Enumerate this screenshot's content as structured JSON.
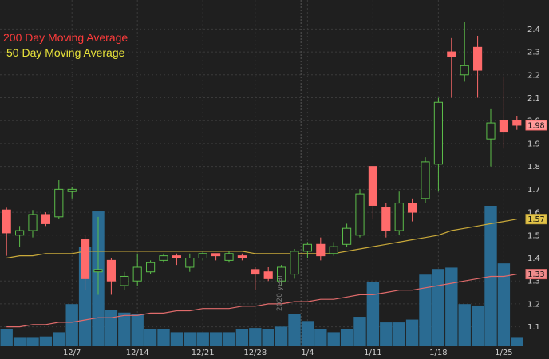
{
  "legend": {
    "ma200_label": "200 Day Moving Average",
    "ma50_label": "50 Day Moving Average"
  },
  "year_marker": "2020 year",
  "colors": {
    "background": "#1f1f1f",
    "grid": "#3a3a3a",
    "up": "#5cbf4a",
    "down": "#ff6b6b",
    "volume": "#2a6b92",
    "ma50": "#c9a93a",
    "ma200": "#e06b6b",
    "axis_text": "#cfcfcf"
  },
  "chart_data": {
    "type": "candlestick",
    "ylim": [
      1.05,
      2.45
    ],
    "yticks": [
      1.1,
      1.2,
      1.3,
      1.4,
      1.5,
      1.6,
      1.7,
      1.8,
      1.9,
      2.0,
      2.1,
      2.2,
      2.3,
      2.4
    ],
    "xtick_labels": [
      {
        "label": "12/7",
        "index": 5
      },
      {
        "label": "12/14",
        "index": 10
      },
      {
        "label": "12/21",
        "index": 15
      },
      {
        "label": "12/28",
        "index": 19
      },
      {
        "label": "1/4",
        "index": 23
      },
      {
        "label": "1/11",
        "index": 28
      },
      {
        "label": "1/18",
        "index": 33
      },
      {
        "label": "1/25",
        "index": 38
      }
    ],
    "year_boundary_index": 22,
    "candles": [
      {
        "o": 1.61,
        "h": 1.62,
        "l": 1.41,
        "c": 1.51
      },
      {
        "o": 1.5,
        "h": 1.54,
        "l": 1.45,
        "c": 1.52
      },
      {
        "o": 1.52,
        "h": 1.61,
        "l": 1.49,
        "c": 1.59
      },
      {
        "o": 1.59,
        "h": 1.6,
        "l": 1.54,
        "c": 1.55
      },
      {
        "o": 1.58,
        "h": 1.74,
        "l": 1.57,
        "c": 1.7
      },
      {
        "o": 1.69,
        "h": 1.71,
        "l": 1.66,
        "c": 1.7
      },
      {
        "o": 1.48,
        "h": 1.5,
        "l": 1.26,
        "c": 1.31
      },
      {
        "o": 1.34,
        "h": 1.58,
        "l": 1.24,
        "c": 1.35
      },
      {
        "o": 1.39,
        "h": 1.4,
        "l": 1.24,
        "c": 1.3
      },
      {
        "o": 1.28,
        "h": 1.34,
        "l": 1.26,
        "c": 1.32
      },
      {
        "o": 1.3,
        "h": 1.42,
        "l": 1.28,
        "c": 1.36
      },
      {
        "o": 1.34,
        "h": 1.39,
        "l": 1.33,
        "c": 1.38
      },
      {
        "o": 1.39,
        "h": 1.42,
        "l": 1.38,
        "c": 1.41
      },
      {
        "o": 1.41,
        "h": 1.42,
        "l": 1.37,
        "c": 1.4
      },
      {
        "o": 1.36,
        "h": 1.42,
        "l": 1.34,
        "c": 1.4
      },
      {
        "o": 1.4,
        "h": 1.43,
        "l": 1.39,
        "c": 1.42
      },
      {
        "o": 1.42,
        "h": 1.42,
        "l": 1.39,
        "c": 1.41
      },
      {
        "o": 1.39,
        "h": 1.43,
        "l": 1.38,
        "c": 1.42
      },
      {
        "o": 1.41,
        "h": 1.42,
        "l": 1.39,
        "c": 1.4
      },
      {
        "o": 1.35,
        "h": 1.36,
        "l": 1.26,
        "c": 1.33
      },
      {
        "o": 1.34,
        "h": 1.36,
        "l": 1.3,
        "c": 1.31
      },
      {
        "o": 1.3,
        "h": 1.37,
        "l": 1.28,
        "c": 1.36
      },
      {
        "o": 1.33,
        "h": 1.44,
        "l": 1.31,
        "c": 1.43
      },
      {
        "o": 1.43,
        "h": 1.47,
        "l": 1.4,
        "c": 1.46
      },
      {
        "o": 1.46,
        "h": 1.49,
        "l": 1.39,
        "c": 1.41
      },
      {
        "o": 1.42,
        "h": 1.47,
        "l": 1.41,
        "c": 1.45
      },
      {
        "o": 1.46,
        "h": 1.55,
        "l": 1.45,
        "c": 1.53
      },
      {
        "o": 1.5,
        "h": 1.7,
        "l": 1.49,
        "c": 1.68
      },
      {
        "o": 1.8,
        "h": 1.8,
        "l": 1.57,
        "c": 1.63
      },
      {
        "o": 1.62,
        "h": 1.64,
        "l": 1.49,
        "c": 1.52
      },
      {
        "o": 1.52,
        "h": 1.69,
        "l": 1.5,
        "c": 1.64
      },
      {
        "o": 1.64,
        "h": 1.66,
        "l": 1.56,
        "c": 1.6
      },
      {
        "o": 1.66,
        "h": 1.84,
        "l": 1.64,
        "c": 1.82
      },
      {
        "o": 1.81,
        "h": 2.1,
        "l": 1.69,
        "c": 2.08
      },
      {
        "o": 2.3,
        "h": 2.36,
        "l": 2.1,
        "c": 2.28
      },
      {
        "o": 2.2,
        "h": 2.43,
        "l": 2.17,
        "c": 2.24
      },
      {
        "o": 2.32,
        "h": 2.37,
        "l": 2.1,
        "c": 2.22
      },
      {
        "o": 1.92,
        "h": 2.05,
        "l": 1.8,
        "c": 1.99
      },
      {
        "o": 2.0,
        "h": 2.19,
        "l": 1.88,
        "c": 1.95
      },
      {
        "o": 2.0,
        "h": 2.02,
        "l": 1.96,
        "c": 1.98
      }
    ],
    "volumes": [
      0.12,
      0.06,
      0.06,
      0.07,
      0.1,
      0.3,
      0.71,
      0.96,
      0.26,
      0.24,
      0.23,
      0.12,
      0.12,
      0.1,
      0.1,
      0.1,
      0.1,
      0.1,
      0.12,
      0.13,
      0.12,
      0.14,
      0.23,
      0.18,
      0.12,
      0.1,
      0.12,
      0.21,
      0.46,
      0.17,
      0.17,
      0.19,
      0.51,
      0.55,
      0.56,
      0.3,
      0.29,
      1.0,
      0.59,
      0.06
    ],
    "ma50": [
      1.4,
      1.41,
      1.41,
      1.42,
      1.42,
      1.42,
      1.43,
      1.43,
      1.43,
      1.43,
      1.43,
      1.43,
      1.43,
      1.43,
      1.43,
      1.43,
      1.43,
      1.43,
      1.43,
      1.42,
      1.42,
      1.42,
      1.42,
      1.42,
      1.42,
      1.42,
      1.43,
      1.44,
      1.45,
      1.46,
      1.47,
      1.48,
      1.49,
      1.5,
      1.52,
      1.53,
      1.54,
      1.55,
      1.56,
      1.57
    ],
    "ma200": [
      1.1,
      1.1,
      1.11,
      1.11,
      1.12,
      1.12,
      1.13,
      1.14,
      1.14,
      1.15,
      1.15,
      1.16,
      1.16,
      1.17,
      1.17,
      1.18,
      1.18,
      1.18,
      1.19,
      1.19,
      1.2,
      1.2,
      1.21,
      1.21,
      1.22,
      1.22,
      1.23,
      1.24,
      1.24,
      1.25,
      1.26,
      1.26,
      1.27,
      1.28,
      1.29,
      1.3,
      1.31,
      1.32,
      1.32,
      1.33
    ],
    "price_tags": {
      "last": "1.98",
      "ma50": "1.57",
      "ma200": "1.33"
    }
  }
}
